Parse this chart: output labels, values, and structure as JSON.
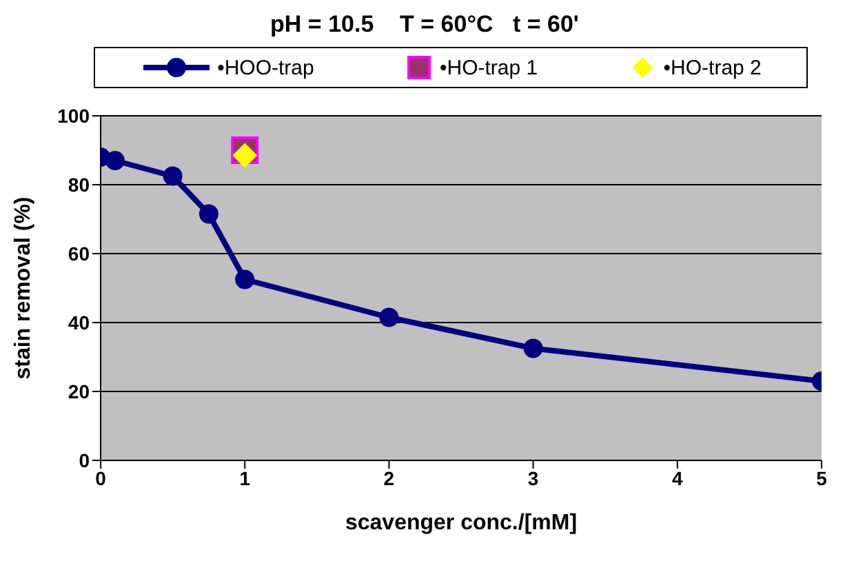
{
  "chart_data": {
    "type": "line",
    "title": "pH = 10.5    T = 60°C   t = 60'",
    "xlabel": "scavenger conc./[mM]",
    "ylabel": "stain removal (%)",
    "xlim": [
      0,
      5
    ],
    "xticks": [
      0,
      1,
      2,
      3,
      4,
      5
    ],
    "ylim": [
      0,
      100
    ],
    "yticks": [
      0,
      20,
      40,
      60,
      80,
      100
    ],
    "grid": "y",
    "legend": "top",
    "series": [
      {
        "name": "•HOO-trap",
        "color": "#000080",
        "marker": "circle",
        "line_style": "solid",
        "x": [
          0,
          0.1,
          0.5,
          0.75,
          1,
          2,
          3,
          5
        ],
        "values": [
          88,
          87,
          82.5,
          71.5,
          52.5,
          41.5,
          32.5,
          23
        ]
      },
      {
        "name": "•HO-trap 1",
        "type": "scatter",
        "color": "#993366",
        "marker": "square",
        "x": [
          1
        ],
        "values": [
          90
        ]
      },
      {
        "name": "•HO-trap 2",
        "type": "scatter",
        "color": "#ffff00",
        "marker": "diamond",
        "x": [
          1
        ],
        "values": [
          88.5
        ]
      }
    ]
  }
}
